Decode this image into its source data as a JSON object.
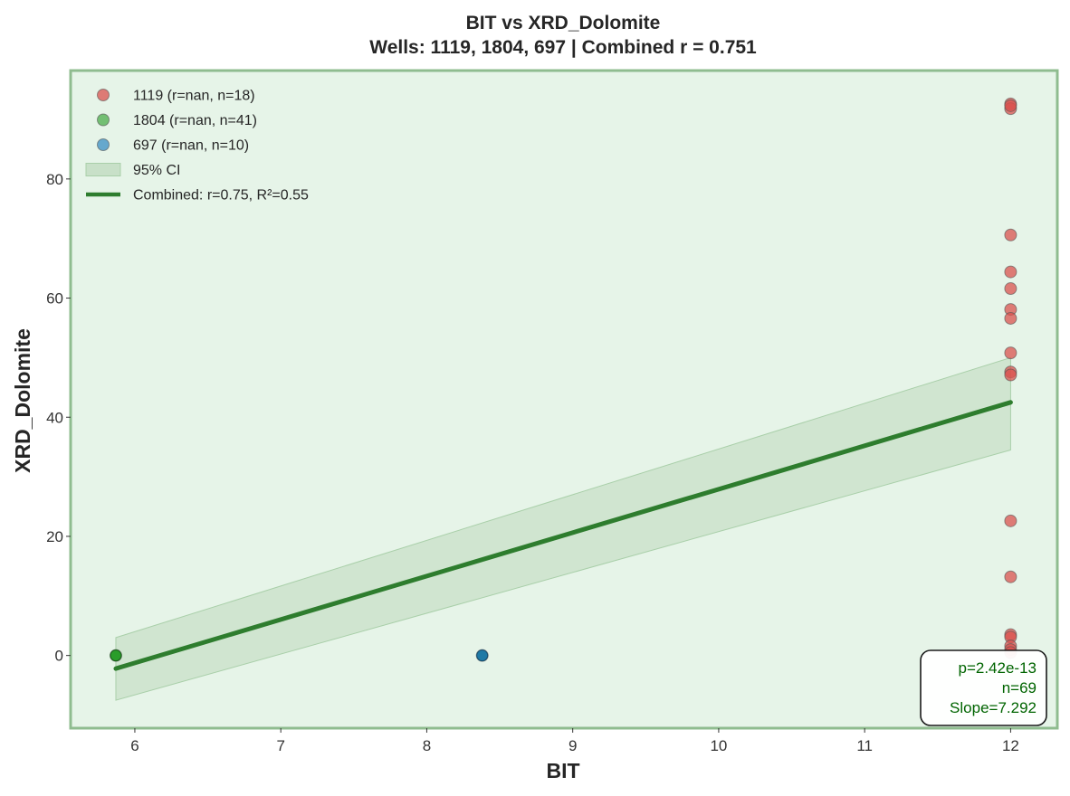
{
  "chart_data": {
    "type": "scatter",
    "title": "BIT vs XRD_Dolomite",
    "subtitle": "Wells: 1119, 1804, 697 | Combined r = 0.751",
    "xlabel": "BIT",
    "ylabel": "XRD_Dolomite",
    "xlim": [
      5.56,
      12.32
    ],
    "ylim": [
      -12.2,
      98.2
    ],
    "xticks": [
      6,
      7,
      8,
      9,
      10,
      11,
      12
    ],
    "yticks": [
      0,
      20,
      40,
      60,
      80
    ],
    "grid": false,
    "legend_position": "top-left",
    "colors": {
      "background": "#e6f4e8",
      "frame": "#8fbc8f",
      "fit_line": "#2e7d2e",
      "ci_fill": "#c8e0c8",
      "stats_text": "#006400"
    },
    "series": [
      {
        "name": "1119 (r=nan, n=18)",
        "color": "#d9534f",
        "points": [
          [
            12,
            92.6
          ],
          [
            12,
            91.8
          ],
          [
            12,
            92.3
          ],
          [
            12,
            70.6
          ],
          [
            12,
            64.4
          ],
          [
            12,
            61.6
          ],
          [
            12,
            58.1
          ],
          [
            12,
            56.6
          ],
          [
            12,
            50.8
          ],
          [
            12,
            47.6
          ],
          [
            12,
            47.1
          ],
          [
            12,
            22.6
          ],
          [
            12,
            13.2
          ],
          [
            12,
            3.5
          ],
          [
            12,
            3.1
          ],
          [
            12,
            1.6
          ],
          [
            12,
            1.0
          ],
          [
            12,
            0.5
          ]
        ]
      },
      {
        "name": "1804 (r=nan, n=41)",
        "color": "#4cae4c",
        "points": [
          [
            5.87,
            0
          ]
        ]
      },
      {
        "name": "697 (r=nan, n=10)",
        "color": "#3b8fc4",
        "points": [
          [
            8.38,
            0
          ]
        ]
      }
    ],
    "ci": {
      "name": "95% CI",
      "x": [
        5.87,
        12
      ],
      "lower": [
        -7.5,
        34.5
      ],
      "upper": [
        3.0,
        50.0
      ]
    },
    "fit": {
      "name": "Combined: r=0.75, R²=0.55",
      "x": [
        5.87,
        12
      ],
      "y": [
        -2.2,
        42.5
      ]
    },
    "stats_box": {
      "lines": [
        "p=2.42e-13",
        "n=69",
        "Slope=7.292"
      ]
    }
  }
}
